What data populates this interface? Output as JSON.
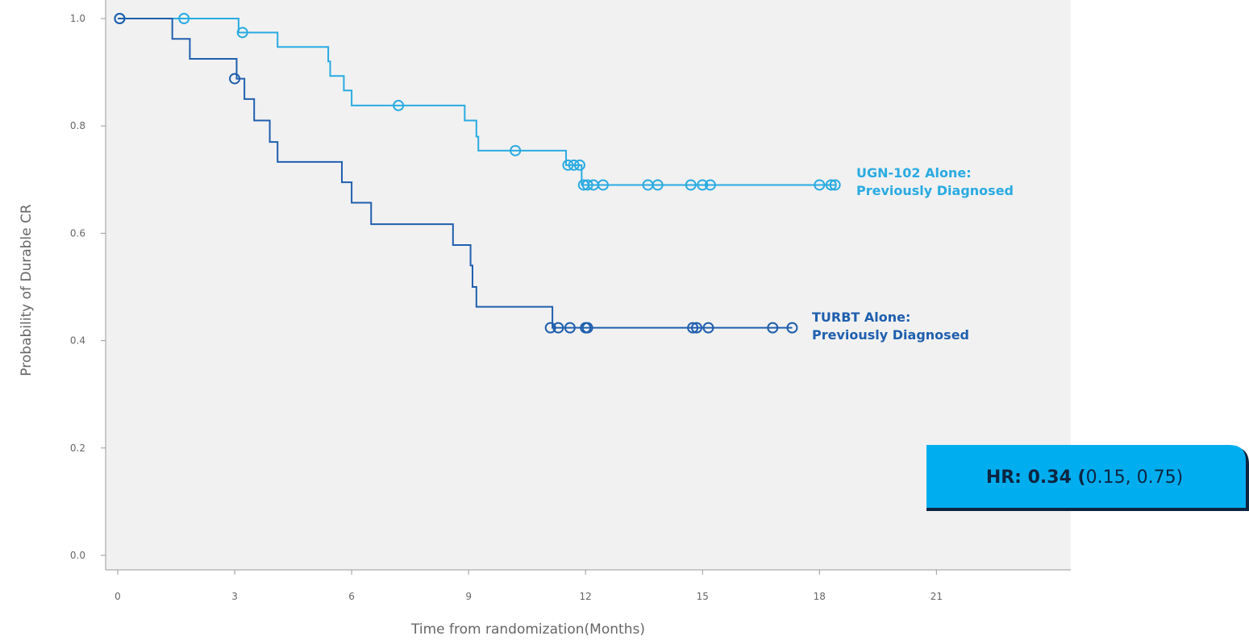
{
  "chart_data": {
    "type": "line",
    "subtype": "kaplan-meier-step",
    "xlabel": "Time from randomization(Months)",
    "ylabel": "Probability of Durable CR",
    "xlim": [
      -0.3,
      24.0
    ],
    "ylim": [
      -0.02,
      1.0
    ],
    "xticks": [
      0,
      3,
      6,
      9,
      12,
      15,
      18,
      21
    ],
    "yticks": [
      0.0,
      0.2,
      0.4,
      0.6,
      0.8,
      1.0
    ],
    "yticklabels": [
      "0.0",
      "0.2",
      "0.4",
      "0.6",
      "0.8",
      "1.0"
    ],
    "grid": false,
    "plot_background": "#f1f1f1",
    "series": [
      {
        "name": "UGN-102 Alone: Previously Diagnosed",
        "label_lines": [
          "UGN-102 Alone:",
          "Previously Diagnosed"
        ],
        "color": "#29abe2",
        "steps": [
          [
            0,
            1.0
          ],
          [
            3.1,
            0.974
          ],
          [
            4.1,
            0.947
          ],
          [
            5.4,
            0.92
          ],
          [
            5.45,
            0.893
          ],
          [
            5.8,
            0.866
          ],
          [
            6.0,
            0.838
          ],
          [
            8.9,
            0.81
          ],
          [
            9.2,
            0.78
          ],
          [
            9.25,
            0.754
          ],
          [
            11.5,
            0.727
          ],
          [
            11.9,
            0.69
          ],
          [
            18.4,
            0.69
          ]
        ],
        "censored": [
          [
            0.05,
            1.0
          ],
          [
            1.7,
            1.0
          ],
          [
            3.2,
            0.974
          ],
          [
            7.2,
            0.838
          ],
          [
            10.2,
            0.754
          ],
          [
            11.55,
            0.727
          ],
          [
            11.7,
            0.727
          ],
          [
            11.85,
            0.727
          ],
          [
            11.95,
            0.69
          ],
          [
            12.05,
            0.69
          ],
          [
            12.2,
            0.69
          ],
          [
            12.45,
            0.69
          ],
          [
            13.6,
            0.69
          ],
          [
            13.85,
            0.69
          ],
          [
            14.7,
            0.69
          ],
          [
            15.0,
            0.69
          ],
          [
            15.2,
            0.69
          ],
          [
            18.0,
            0.69
          ],
          [
            18.3,
            0.69
          ],
          [
            18.4,
            0.69
          ]
        ]
      },
      {
        "name": "TURBT Alone: Previously Diagnosed",
        "label_lines": [
          "TURBT Alone:",
          "Previously Diagnosed"
        ],
        "color": "#1f5fae",
        "steps": [
          [
            0,
            1.0
          ],
          [
            1.4,
            0.962
          ],
          [
            1.85,
            0.925
          ],
          [
            3.05,
            0.888
          ],
          [
            3.25,
            0.85
          ],
          [
            3.5,
            0.81
          ],
          [
            3.9,
            0.77
          ],
          [
            4.1,
            0.733
          ],
          [
            5.75,
            0.695
          ],
          [
            6.0,
            0.657
          ],
          [
            6.5,
            0.617
          ],
          [
            8.6,
            0.578
          ],
          [
            9.05,
            0.54
          ],
          [
            9.1,
            0.5
          ],
          [
            9.2,
            0.463
          ],
          [
            11.15,
            0.424
          ],
          [
            17.3,
            0.424
          ]
        ],
        "censored": [
          [
            0.05,
            1.0
          ],
          [
            3.0,
            0.888
          ],
          [
            11.1,
            0.424
          ],
          [
            11.3,
            0.424
          ],
          [
            11.6,
            0.424
          ],
          [
            12.0,
            0.424
          ],
          [
            12.05,
            0.424
          ],
          [
            14.75,
            0.424
          ],
          [
            14.85,
            0.424
          ],
          [
            15.15,
            0.424
          ],
          [
            16.8,
            0.424
          ],
          [
            17.3,
            0.424
          ]
        ]
      }
    ],
    "annotation": {
      "bold": "HR: 0.34 (",
      "normal": "0.15, 0.75)",
      "box_color": "#00aeef",
      "border_color": "#0d2440"
    }
  }
}
